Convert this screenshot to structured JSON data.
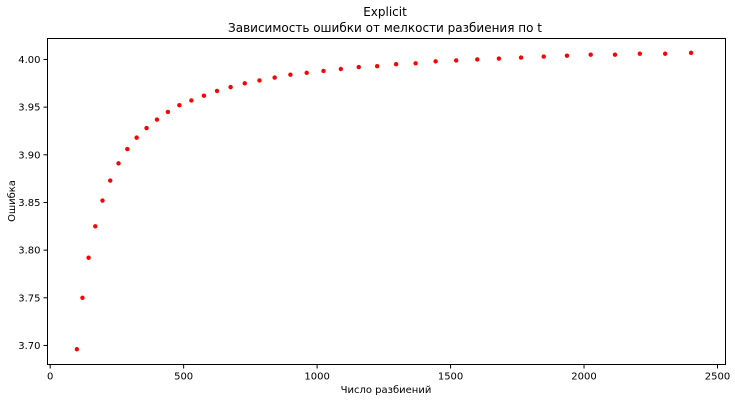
{
  "chart_data": {
    "type": "scatter",
    "title": "Explicit",
    "subtitle": "Зависимость ошибки от мелкости разбиения по t",
    "xlabel": "Число разбиений",
    "ylabel": "Ошибка",
    "xlim": [
      -10,
      2530
    ],
    "ylim": [
      3.68,
      4.022
    ],
    "xticks": [
      0,
      500,
      1000,
      1500,
      2000,
      2500
    ],
    "yticks": [
      3.7,
      3.75,
      3.8,
      3.85,
      3.9,
      3.95,
      4.0
    ],
    "xtick_labels": [
      "0",
      "500",
      "1000",
      "1500",
      "2000",
      "2500"
    ],
    "ytick_labels": [
      "3.70",
      "3.75",
      "3.80",
      "3.85",
      "3.90",
      "3.95",
      "4.00"
    ],
    "grid": false,
    "series": [
      {
        "color": "#ff0000",
        "x": [
          100,
          121,
          144,
          169,
          196,
          225,
          256,
          289,
          324,
          361,
          400,
          441,
          484,
          529,
          576,
          625,
          676,
          729,
          784,
          841,
          900,
          961,
          1024,
          1089,
          1156,
          1225,
          1296,
          1369,
          1444,
          1521,
          1600,
          1681,
          1764,
          1849,
          1936,
          2025,
          2116,
          2209,
          2304,
          2401
        ],
        "y": [
          3.696,
          3.75,
          3.792,
          3.825,
          3.852,
          3.873,
          3.891,
          3.906,
          3.918,
          3.928,
          3.937,
          3.945,
          3.952,
          3.957,
          3.962,
          3.967,
          3.971,
          3.975,
          3.978,
          3.981,
          3.984,
          3.986,
          3.988,
          3.99,
          3.992,
          3.993,
          3.995,
          3.996,
          3.998,
          3.999,
          4.0,
          4.001,
          4.002,
          4.003,
          4.004,
          4.005,
          4.005,
          4.006,
          4.006,
          4.007
        ]
      }
    ]
  }
}
